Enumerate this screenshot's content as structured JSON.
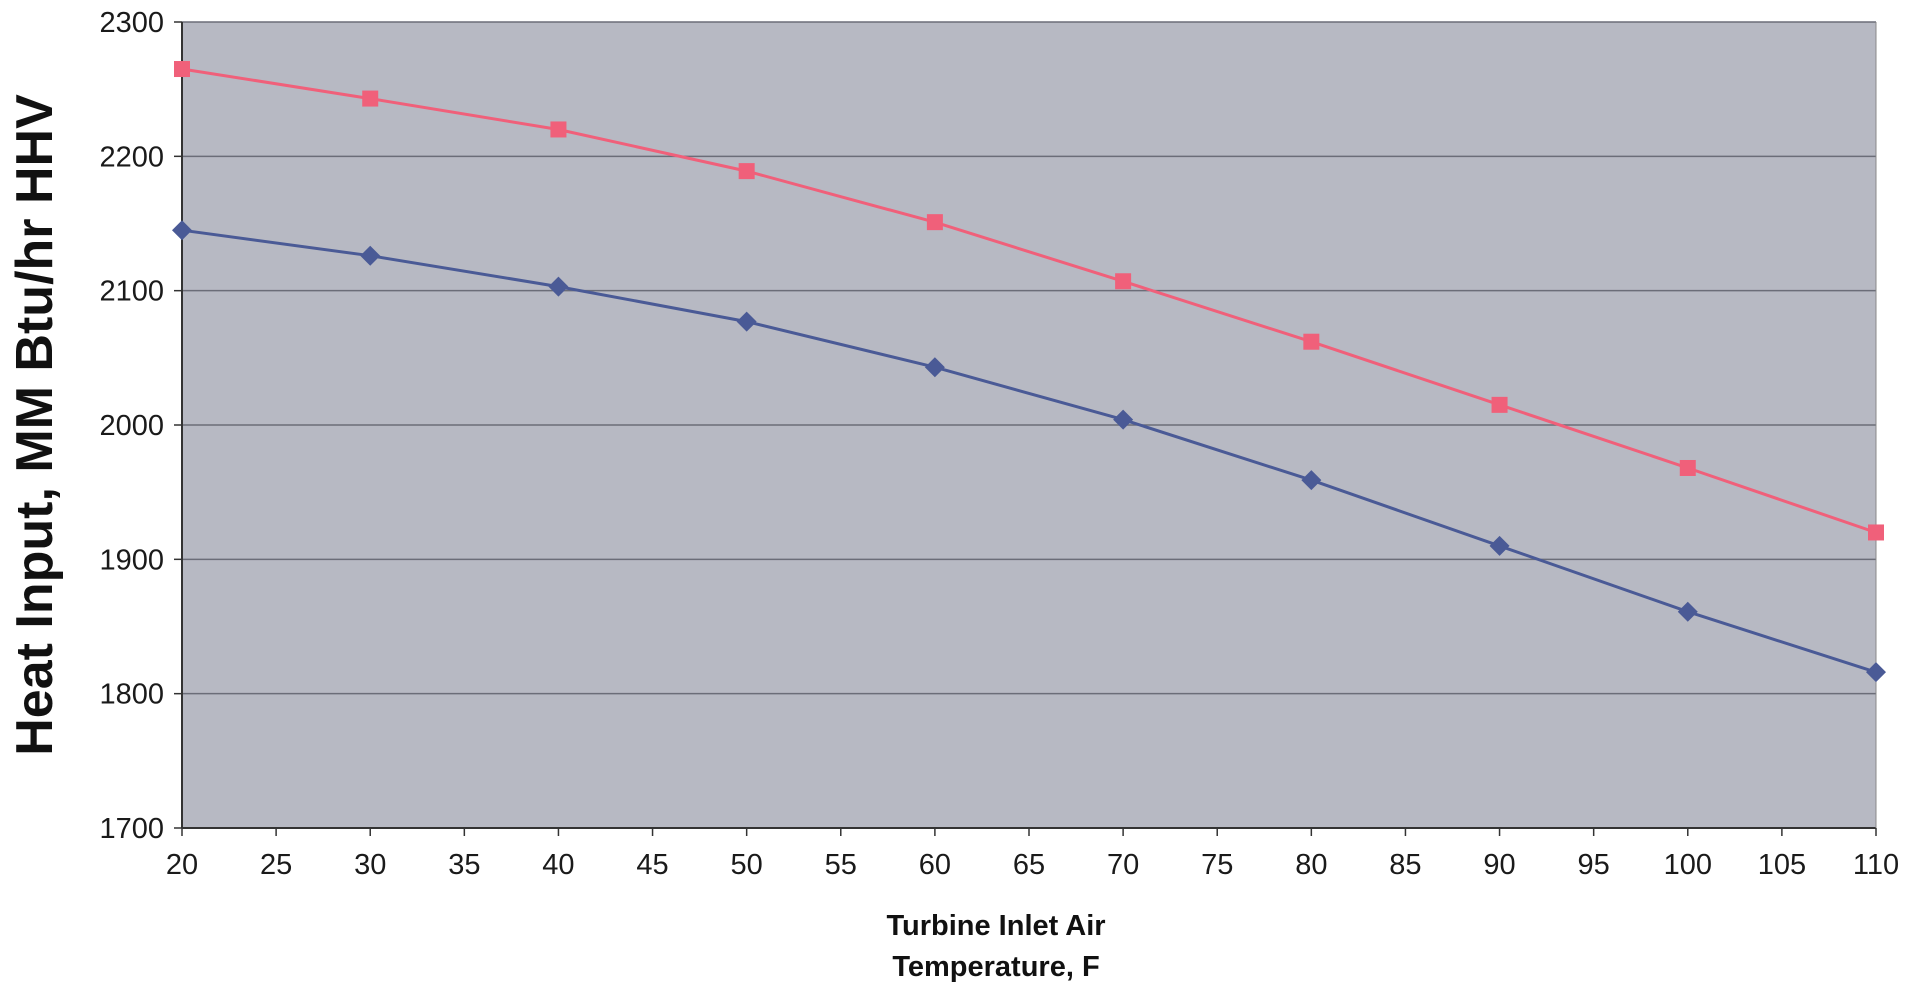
{
  "chart_data": {
    "type": "line",
    "title": "",
    "xlabel": [
      "Turbine Inlet Air",
      "Temperature, F"
    ],
    "ylabel": "Heat Input, MM Btu/hr HHV",
    "xlim": [
      20,
      110
    ],
    "ylim": [
      1700,
      2300
    ],
    "x_ticks": [
      20,
      25,
      30,
      35,
      40,
      45,
      50,
      55,
      60,
      65,
      70,
      75,
      80,
      85,
      90,
      95,
      100,
      105,
      110
    ],
    "y_ticks": [
      1700,
      1800,
      1900,
      2000,
      2100,
      2200,
      2300
    ],
    "grid": "horizontal",
    "legend": "none",
    "plot_background": "#b7b9c3",
    "series": [
      {
        "color": "#f0607a",
        "marker": "square",
        "x": [
          20,
          30,
          40,
          50,
          60,
          70,
          80,
          90,
          100,
          110
        ],
        "y": [
          2265,
          2243,
          2220,
          2189,
          2151,
          2107,
          2062,
          2015,
          1968,
          1920
        ]
      },
      {
        "color": "#4a5a96",
        "marker": "diamond",
        "x": [
          20,
          30,
          40,
          50,
          60,
          70,
          80,
          90,
          100,
          110
        ],
        "y": [
          2145,
          2126,
          2103,
          2077,
          2043,
          2004,
          1959,
          1910,
          1861,
          1816
        ]
      }
    ]
  }
}
